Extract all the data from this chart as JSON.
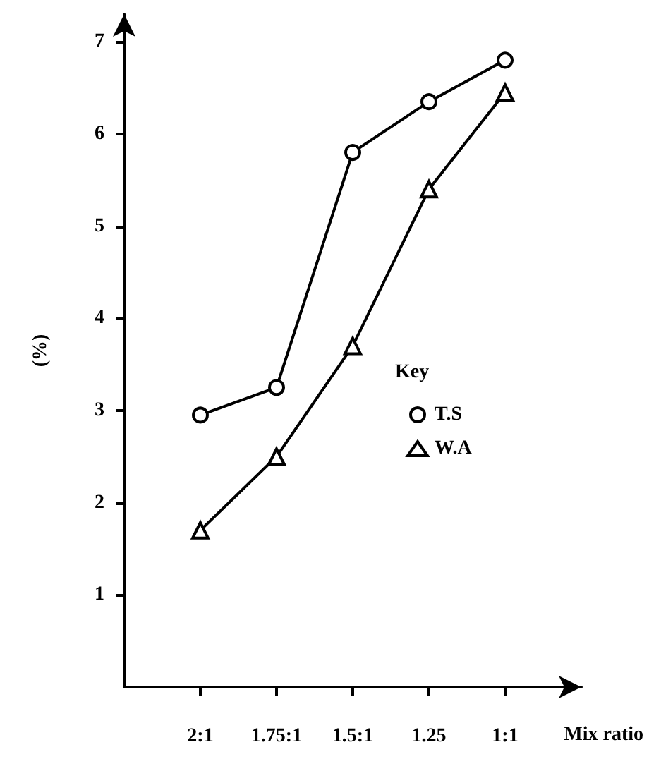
{
  "chart_data": {
    "type": "line",
    "ylabel": "(%)",
    "xlabel": "Mix ratio",
    "legend_title": "Key",
    "legend": "right",
    "grid": false,
    "categories": [
      "2:1",
      "1.75:1",
      "1.5:1",
      "1.25",
      "1:1"
    ],
    "ylim": [
      0,
      7.3
    ],
    "yticks": [
      1,
      2,
      3,
      4,
      5,
      6,
      7
    ],
    "series": [
      {
        "name": "T.S",
        "color": "#000000",
        "marker": "circle",
        "values": [
          2.95,
          3.25,
          5.8,
          6.35,
          6.8
        ]
      },
      {
        "name": "W.A",
        "color": "#000000",
        "marker": "triangle",
        "values": [
          1.7,
          2.5,
          3.7,
          5.4,
          6.45
        ]
      }
    ]
  }
}
